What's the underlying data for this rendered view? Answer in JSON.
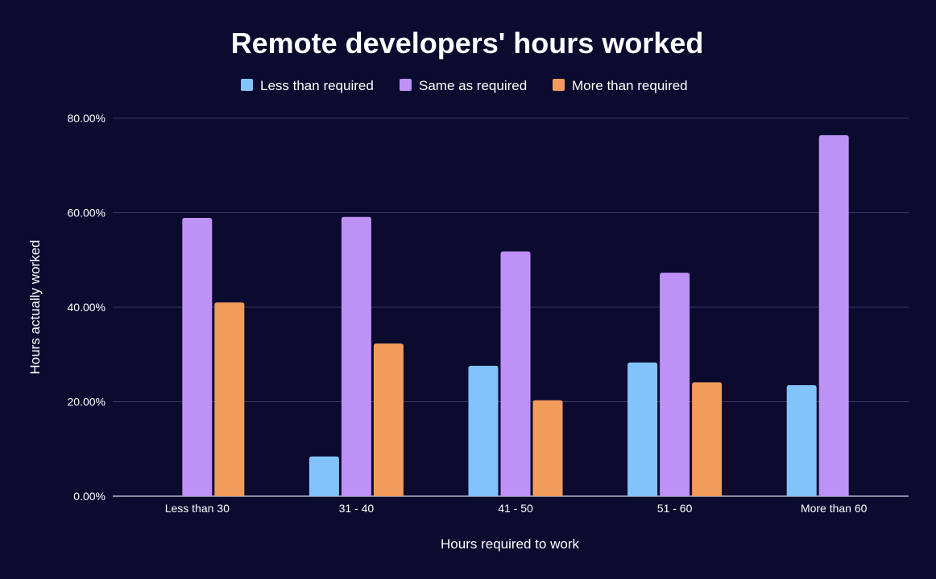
{
  "chart_data": {
    "type": "bar",
    "title": "Remote developers' hours worked",
    "xlabel": "Hours required to work",
    "ylabel": "Hours actually worked",
    "categories": [
      "Less than 30",
      "31 - 40",
      "41 - 50",
      "51 - 60",
      "More than 60"
    ],
    "series": [
      {
        "name": "Less than required",
        "color": "#82c3fb",
        "values": [
          0,
          8.4,
          27.6,
          28.3,
          23.5
        ]
      },
      {
        "name": "Same as required",
        "color": "#bd91f6",
        "values": [
          58.9,
          59.1,
          51.8,
          47.3,
          76.4
        ]
      },
      {
        "name": "More than required",
        "color": "#f19c5b",
        "values": [
          41.0,
          32.3,
          20.3,
          24.1,
          0
        ]
      }
    ],
    "ylim": [
      0,
      80
    ],
    "yticks": [
      "0.00%",
      "20.00%",
      "40.00%",
      "60.00%",
      "80.00%"
    ],
    "ytick_values": [
      0,
      20,
      40,
      60,
      80
    ],
    "grid": true,
    "legend_position": "top-center"
  }
}
